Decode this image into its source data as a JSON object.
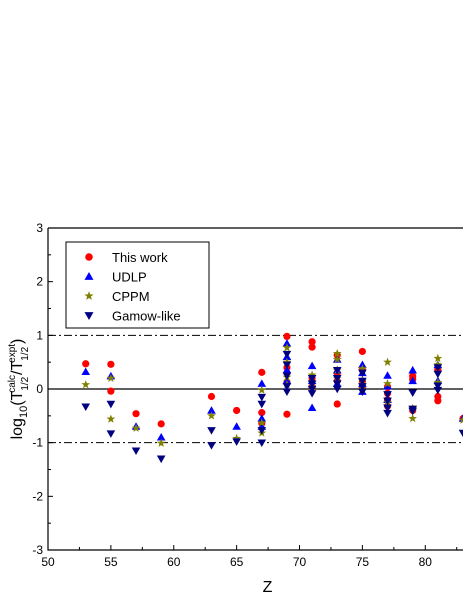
{
  "chart_data": {
    "type": "scatter",
    "xlabel": "Z",
    "ylabel_parts": [
      "log",
      "10",
      "(T",
      "1/2",
      "calc",
      "/T",
      "1/2",
      "expt",
      ")"
    ],
    "xlim": [
      50,
      83
    ],
    "ylim": [
      -3,
      3
    ],
    "xticks": [
      50,
      55,
      60,
      65,
      70,
      75,
      80
    ],
    "yticks": [
      -3,
      -2,
      -1,
      0,
      1,
      2,
      3
    ],
    "reference_lines": [
      {
        "y": 1,
        "style": "dash-dot"
      },
      {
        "y": 0,
        "style": "solid"
      },
      {
        "y": -1,
        "style": "dash-dot"
      }
    ],
    "legend_position": "top-left",
    "series": [
      {
        "name": "This work",
        "color": "#ff0000",
        "marker": "circle",
        "points": [
          [
            53,
            0.47
          ],
          [
            55,
            0.46
          ],
          [
            55,
            -0.04
          ],
          [
            57,
            -0.46
          ],
          [
            59,
            -0.65
          ],
          [
            63,
            -0.14
          ],
          [
            65,
            -0.4
          ],
          [
            67,
            0.31
          ],
          [
            67,
            -0.44
          ],
          [
            67,
            -0.64
          ],
          [
            69,
            0.98
          ],
          [
            69,
            0.4
          ],
          [
            69,
            0.3
          ],
          [
            69,
            0.13
          ],
          [
            69,
            -0.47
          ],
          [
            71,
            0.88
          ],
          [
            71,
            0.78
          ],
          [
            71,
            0.2
          ],
          [
            71,
            0.04
          ],
          [
            73,
            0.63
          ],
          [
            73,
            0.3
          ],
          [
            73,
            0.15
          ],
          [
            73,
            -0.28
          ],
          [
            75,
            0.7
          ],
          [
            75,
            0.35
          ],
          [
            75,
            0.15
          ],
          [
            75,
            0.02
          ],
          [
            77,
            0.04
          ],
          [
            77,
            -0.08
          ],
          [
            77,
            -0.2
          ],
          [
            77,
            -0.32
          ],
          [
            79,
            0.24
          ],
          [
            79,
            0.18
          ],
          [
            79,
            -0.4
          ],
          [
            81,
            0.36
          ],
          [
            81,
            -0.14
          ],
          [
            81,
            -0.22
          ],
          [
            83,
            -0.55
          ]
        ]
      },
      {
        "name": "UDLP",
        "color": "#0000ff",
        "marker": "triangle-up",
        "points": [
          [
            53,
            0.32
          ],
          [
            55,
            0.24
          ],
          [
            57,
            -0.7
          ],
          [
            59,
            -0.9
          ],
          [
            63,
            -0.4
          ],
          [
            65,
            -0.7
          ],
          [
            67,
            0.1
          ],
          [
            67,
            -0.55
          ],
          [
            67,
            -0.7
          ],
          [
            69,
            0.85
          ],
          [
            69,
            0.6
          ],
          [
            69,
            0.35
          ],
          [
            69,
            0.15
          ],
          [
            71,
            0.43
          ],
          [
            71,
            0.15
          ],
          [
            71,
            -0.35
          ],
          [
            73,
            0.55
          ],
          [
            73,
            0.35
          ],
          [
            73,
            0.1
          ],
          [
            75,
            0.45
          ],
          [
            75,
            0.3
          ],
          [
            75,
            0.1
          ],
          [
            75,
            -0.05
          ],
          [
            77,
            0.25
          ],
          [
            77,
            0.05
          ],
          [
            77,
            -0.2
          ],
          [
            79,
            0.35
          ],
          [
            79,
            0.15
          ],
          [
            81,
            0.45
          ],
          [
            81,
            0.15
          ],
          [
            83,
            -0.55
          ]
        ]
      },
      {
        "name": "CPPM",
        "color": "#808000",
        "marker": "star",
        "points": [
          [
            53,
            0.08
          ],
          [
            55,
            0.2
          ],
          [
            55,
            -0.56
          ],
          [
            57,
            -0.73
          ],
          [
            59,
            -1.01
          ],
          [
            63,
            -0.5
          ],
          [
            65,
            -0.92
          ],
          [
            67,
            -0.02
          ],
          [
            67,
            -0.63
          ],
          [
            67,
            -0.82
          ],
          [
            69,
            0.77
          ],
          [
            69,
            0.5
          ],
          [
            69,
            0.22
          ],
          [
            69,
            0.08
          ],
          [
            71,
            0.26
          ],
          [
            71,
            0.12
          ],
          [
            71,
            0.0
          ],
          [
            73,
            0.66
          ],
          [
            73,
            0.55
          ],
          [
            73,
            0.35
          ],
          [
            73,
            0.2
          ],
          [
            75,
            0.38
          ],
          [
            75,
            0.15
          ],
          [
            75,
            0.0
          ],
          [
            77,
            0.5
          ],
          [
            77,
            0.1
          ],
          [
            77,
            -0.25
          ],
          [
            79,
            -0.36
          ],
          [
            79,
            -0.55
          ],
          [
            81,
            0.57
          ],
          [
            81,
            0.45
          ],
          [
            81,
            0.12
          ],
          [
            83,
            -0.58
          ]
        ]
      },
      {
        "name": "Gamow-like",
        "color": "#000080",
        "marker": "triangle-down",
        "points": [
          [
            53,
            -0.33
          ],
          [
            55,
            -0.28
          ],
          [
            55,
            -0.83
          ],
          [
            57,
            -1.15
          ],
          [
            59,
            -1.3
          ],
          [
            63,
            -0.77
          ],
          [
            63,
            -1.05
          ],
          [
            65,
            -0.98
          ],
          [
            67,
            -0.15
          ],
          [
            67,
            -0.28
          ],
          [
            67,
            -0.77
          ],
          [
            67,
            -1.0
          ],
          [
            69,
            0.65
          ],
          [
            69,
            0.45
          ],
          [
            69,
            0.25
          ],
          [
            69,
            0.05
          ],
          [
            69,
            -0.05
          ],
          [
            71,
            0.2
          ],
          [
            71,
            0.1
          ],
          [
            71,
            0.0
          ],
          [
            71,
            -0.08
          ],
          [
            73,
            0.35
          ],
          [
            73,
            0.2
          ],
          [
            73,
            0.1
          ],
          [
            73,
            0.0
          ],
          [
            75,
            0.3
          ],
          [
            75,
            0.15
          ],
          [
            75,
            0.05
          ],
          [
            75,
            -0.05
          ],
          [
            77,
            -0.1
          ],
          [
            77,
            -0.22
          ],
          [
            77,
            -0.35
          ],
          [
            77,
            -0.45
          ],
          [
            79,
            -0.37
          ],
          [
            79,
            -0.41
          ],
          [
            79,
            -0.07
          ],
          [
            81,
            0.4
          ],
          [
            81,
            0.28
          ],
          [
            81,
            0.06
          ],
          [
            81,
            -0.02
          ],
          [
            83,
            -0.82
          ]
        ]
      }
    ]
  }
}
